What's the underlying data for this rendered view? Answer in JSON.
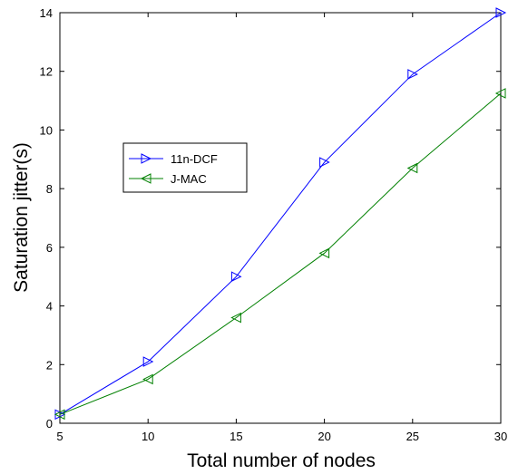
{
  "chart_data": {
    "type": "line",
    "title": "",
    "xlabel": "Total number of nodes",
    "ylabel": "Saturation jitter(s)",
    "xlim": [
      5,
      30
    ],
    "ylim": [
      0,
      14
    ],
    "xticks": [
      5,
      10,
      15,
      20,
      25,
      30
    ],
    "yticks": [
      0,
      2,
      4,
      6,
      8,
      10,
      12,
      14
    ],
    "grid": false,
    "legend_position": "upper-left",
    "x": [
      5,
      10,
      15,
      20,
      25,
      30
    ],
    "series": [
      {
        "name": "11n-DCF",
        "marker": "triangle-right",
        "color": "#0000ff",
        "values": [
          0.3,
          2.1,
          5.0,
          8.9,
          11.9,
          14.0
        ]
      },
      {
        "name": "J-MAC",
        "marker": "triangle-left",
        "color": "#008000",
        "values": [
          0.3,
          1.5,
          3.6,
          5.8,
          8.7,
          11.25
        ]
      }
    ]
  }
}
